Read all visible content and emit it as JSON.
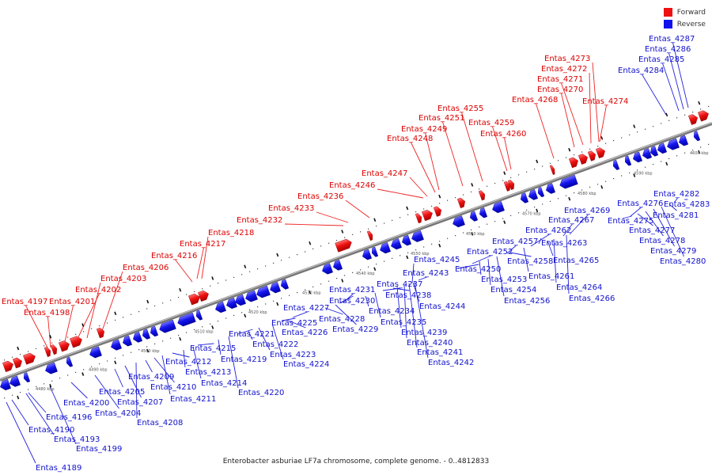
{
  "legend": {
    "forward": {
      "label": "Forward",
      "color": "#ee1111"
    },
    "reverse": {
      "label": "Reverse",
      "color": "#1111ee"
    }
  },
  "caption": "Enterobacter asburiae LF7a chromosome, complete genome. - 0..4812833",
  "axis": {
    "unit": "kbp",
    "ticks": [
      "4480 kbp",
      "4490 kbp",
      "4500 kbp",
      "4510 kbp",
      "4520 kbp",
      "4530 kbp",
      "4540 kbp",
      "4550 kbp",
      "4560 kbp",
      "4570 kbp",
      "4580 kbp",
      "4590 kbp",
      "4600 kbp"
    ]
  },
  "forward_genes": [
    "Entas_4197",
    "Entas_4198",
    "Entas_4201",
    "Entas_4202",
    "Entas_4203",
    "Entas_4206",
    "Entas_4216",
    "Entas_4217",
    "Entas_4218",
    "Entas_4232",
    "Entas_4233",
    "Entas_4236",
    "Entas_4246",
    "Entas_4247",
    "Entas_4248",
    "Entas_4249",
    "Entas_4251",
    "Entas_4255",
    "Entas_4259",
    "Entas_4260",
    "Entas_4268",
    "Entas_4270",
    "Entas_4271",
    "Entas_4272",
    "Entas_4273",
    "Entas_4274"
  ],
  "reverse_genes": [
    "Entas_4189",
    "Entas_4190",
    "Entas_4193",
    "Entas_4196",
    "Entas_4199",
    "Entas_4200",
    "Entas_4204",
    "Entas_4205",
    "Entas_4207",
    "Entas_4208",
    "Entas_4209",
    "Entas_4210",
    "Entas_4211",
    "Entas_4212",
    "Entas_4213",
    "Entas_4214",
    "Entas_4215",
    "Entas_4219",
    "Entas_4220",
    "Entas_4221",
    "Entas_4222",
    "Entas_4223",
    "Entas_4224",
    "Entas_4225",
    "Entas_4226",
    "Entas_4227",
    "Entas_4228",
    "Entas_4229",
    "Entas_4230",
    "Entas_4231",
    "Entas_4234",
    "Entas_4235",
    "Entas_4237",
    "Entas_4238",
    "Entas_4239",
    "Entas_4240",
    "Entas_4241",
    "Entas_4242",
    "Entas_4243",
    "Entas_4244",
    "Entas_4245",
    "Entas_4250",
    "Entas_4252",
    "Entas_4253",
    "Entas_4254",
    "Entas_4256",
    "Entas_4257",
    "Entas_4258",
    "Entas_4261",
    "Entas_4262",
    "Entas_4263",
    "Entas_4264",
    "Entas_4265",
    "Entas_4266",
    "Entas_4267",
    "Entas_4269",
    "Entas_4275",
    "Entas_4276",
    "Entas_4277",
    "Entas_4278",
    "Entas_4279",
    "Entas_4280",
    "Entas_4281",
    "Entas_4282",
    "Entas_4283",
    "Entas_4284",
    "Entas_4285",
    "Entas_4286",
    "Entas_4287"
  ]
}
